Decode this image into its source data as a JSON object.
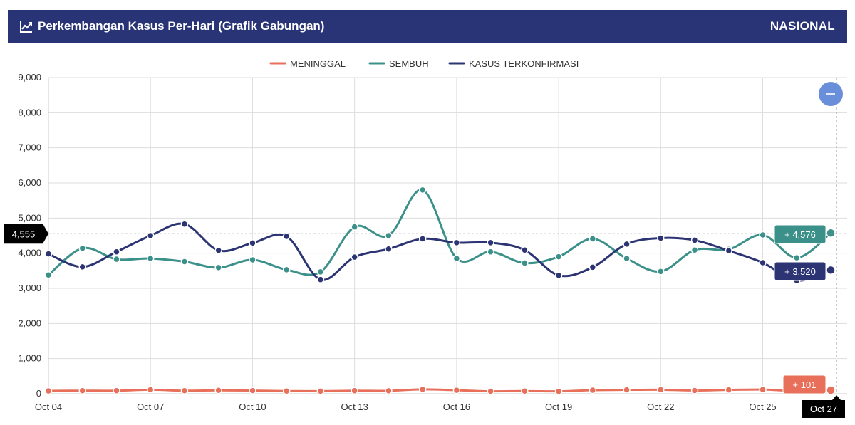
{
  "header": {
    "title": "Perkembangan Kasus Per-Hari (Grafik Gabungan)",
    "region": "NASIONAL",
    "icon": "line-chart-icon"
  },
  "zoom_button": {
    "icon": "minus-icon"
  },
  "crosshair": {
    "y_value_label": "4,555",
    "x_value_label": "Oct 27"
  },
  "colors": {
    "header_bg": "#293477",
    "meninggal": "#E8705B",
    "sembuh": "#3B9089",
    "terkonfirmasi": "#2C3473",
    "zoom": "#6A8FDA"
  },
  "chart_data": {
    "type": "line",
    "title": "Perkembangan Kasus Per-Hari (Grafik Gabungan)",
    "xlabel": "",
    "ylabel": "",
    "ylim": [
      0,
      9000
    ],
    "yticks": [
      "0",
      "1,000",
      "2,000",
      "3,000",
      "4,000",
      "5,000",
      "6,000",
      "7,000",
      "8,000",
      "9,000"
    ],
    "xticks": [
      "Oct 04",
      "Oct 07",
      "Oct 10",
      "Oct 13",
      "Oct 16",
      "Oct 19",
      "Oct 22",
      "Oct 25"
    ],
    "x": [
      "Oct 04",
      "Oct 05",
      "Oct 06",
      "Oct 07",
      "Oct 08",
      "Oct 09",
      "Oct 10",
      "Oct 11",
      "Oct 12",
      "Oct 13",
      "Oct 14",
      "Oct 15",
      "Oct 16",
      "Oct 17",
      "Oct 18",
      "Oct 19",
      "Oct 20",
      "Oct 21",
      "Oct 22",
      "Oct 23",
      "Oct 24",
      "Oct 25",
      "Oct 26",
      "Oct 27"
    ],
    "grid": true,
    "legend": "top-center",
    "series": [
      {
        "name": "MENINGGAL",
        "color": "#E8705B",
        "values": [
          80,
          87,
          86,
          113,
          87,
          97,
          89,
          76,
          73,
          85,
          84,
          124,
          100,
          70,
          77,
          68,
          102,
          111,
          114,
          91,
          110,
          118,
          80,
          101
        ],
        "end_label": "+ 101"
      },
      {
        "name": "SEMBUH",
        "color": "#3B9089",
        "values": [
          3380,
          4140,
          3830,
          3850,
          3760,
          3590,
          3810,
          3530,
          3470,
          4750,
          4500,
          5800,
          3850,
          4040,
          3720,
          3900,
          4410,
          3850,
          3480,
          4090,
          4110,
          4520,
          3870,
          4576
        ],
        "end_label": "+ 4,576"
      },
      {
        "name": "KASUS TERKONFIRMASI",
        "color": "#2C3473",
        "values": [
          3980,
          3610,
          4040,
          4500,
          4830,
          4080,
          4290,
          4480,
          3250,
          3890,
          4120,
          4410,
          4300,
          4300,
          4090,
          3370,
          3600,
          4260,
          4430,
          4370,
          4070,
          3730,
          3220,
          3520
        ],
        "end_label": "+ 3,520"
      }
    ]
  }
}
